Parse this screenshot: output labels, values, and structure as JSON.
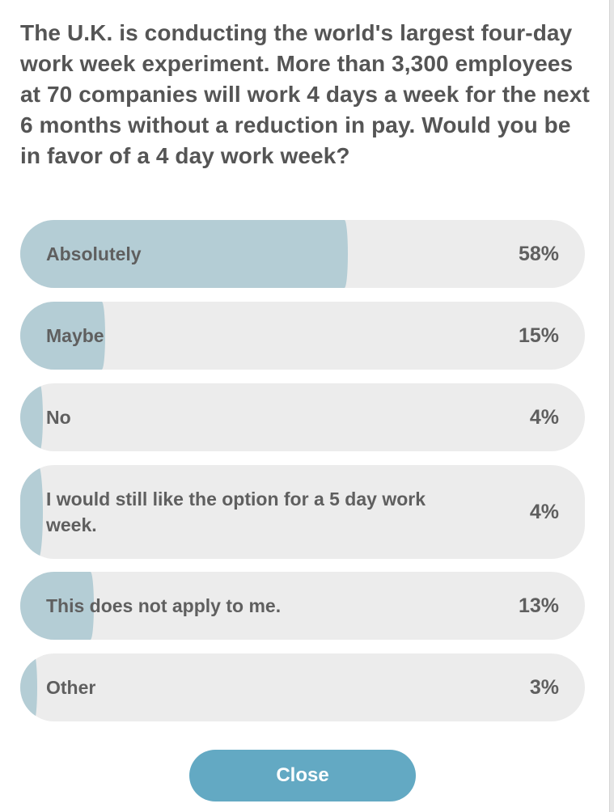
{
  "poll": {
    "question": "The U.K. is conducting the world's largest four-day work week experiment. More than 3,300 employees at 70 companies will work 4 days a week for the next 6 months without a reduction in pay. Would you be in favor of a 4 day work week?",
    "options": [
      {
        "label": "Absolutely",
        "percent_label": "58%",
        "percent": 58
      },
      {
        "label": "Maybe",
        "percent_label": "15%",
        "percent": 15
      },
      {
        "label": "No",
        "percent_label": "4%",
        "percent": 4
      },
      {
        "label": "I would still like the option for a 5 day work week.",
        "percent_label": "4%",
        "percent": 4
      },
      {
        "label": "This does not apply to me.",
        "percent_label": "13%",
        "percent": 13
      },
      {
        "label": "Other",
        "percent_label": "3%",
        "percent": 3
      }
    ],
    "fill_color": "#b4cdd5",
    "track_color": "#ececec"
  },
  "footer": {
    "close_label": "Close",
    "close_color": "#63a9c3"
  }
}
